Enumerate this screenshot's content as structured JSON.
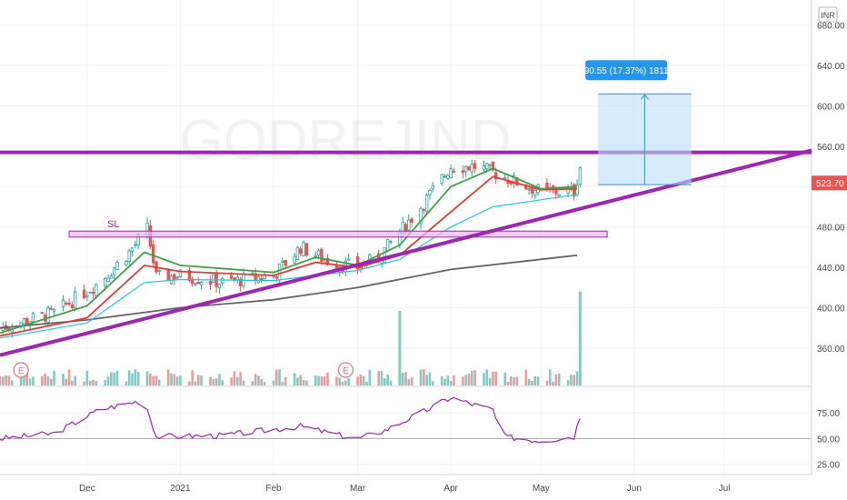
{
  "chart_data": {
    "type": "candlestick",
    "currency": "INR",
    "watermark": "GODREJIND",
    "price_axis": {
      "ticks": [
        360,
        400,
        440,
        480,
        520,
        560,
        600,
        640,
        680
      ],
      "labels": [
        "360.00",
        "400.00",
        "440.00",
        "480.00",
        "",
        "560.00",
        "600.00",
        "640.00",
        "680.00"
      ],
      "range": [
        323,
        705
      ]
    },
    "time_axis": {
      "labels": [
        "Dec",
        "2021",
        "Feb",
        "Mar",
        "Apr",
        "May",
        "Jun",
        "Jul"
      ],
      "range": [
        "2020-11-02",
        "2021-07-30"
      ]
    },
    "last_price": {
      "value": 523.7,
      "label": "523.70",
      "color": "#ef5350"
    },
    "measure": {
      "label": "90.55 (17.37%) 1811",
      "from_price": 522,
      "to_price": 612,
      "start_date": "2021-05-20",
      "end_date": "2021-06-20"
    },
    "annotations": {
      "stop_loss": "SL",
      "earnings": [
        "E",
        "E"
      ]
    },
    "resistance_line": {
      "price": 554,
      "color": "#9c27b0"
    },
    "trendline": {
      "start": [
        "2020-11-02",
        353
      ],
      "end": [
        "2021-07-30",
        556
      ],
      "color": "#9c27b0"
    },
    "support_zone": {
      "from_price": 470,
      "to_price": 476,
      "start": "2020-11-25",
      "end": "2021-05-23"
    },
    "moving_averages": [
      {
        "name": "green",
        "color": "#43a047"
      },
      {
        "name": "red",
        "color": "#e53935"
      },
      {
        "name": "teal",
        "color": "#26c6da"
      },
      {
        "name": "grey",
        "color": "#666666"
      }
    ],
    "control_points": {
      "close": [
        [
          "2020-11-02",
          380
        ],
        [
          "2020-11-20",
          395
        ],
        [
          "2020-12-05",
          425
        ],
        [
          "2020-12-15",
          455
        ],
        [
          "2020-12-21",
          478
        ],
        [
          "2020-12-24",
          430
        ],
        [
          "2021-01-01",
          432
        ],
        [
          "2021-01-15",
          425
        ],
        [
          "2021-02-01",
          432
        ],
        [
          "2021-02-10",
          460
        ],
        [
          "2021-02-20",
          445
        ],
        [
          "2021-03-01",
          440
        ],
        [
          "2021-03-08",
          450
        ],
        [
          "2021-03-15",
          475
        ],
        [
          "2021-03-22",
          500
        ],
        [
          "2021-04-01",
          540
        ],
        [
          "2021-04-10",
          540
        ],
        [
          "2021-04-20",
          528
        ],
        [
          "2021-05-01",
          515
        ],
        [
          "2021-05-12",
          515
        ],
        [
          "2021-05-15",
          552
        ]
      ],
      "ma_green": [
        [
          "2020-11-02",
          375
        ],
        [
          "2020-12-01",
          402
        ],
        [
          "2020-12-20",
          455
        ],
        [
          "2021-01-01",
          442
        ],
        [
          "2021-02-01",
          435
        ],
        [
          "2021-02-15",
          450
        ],
        [
          "2021-03-01",
          442
        ],
        [
          "2021-03-15",
          462
        ],
        [
          "2021-04-01",
          520
        ],
        [
          "2021-04-15",
          538
        ],
        [
          "2021-05-01",
          518
        ],
        [
          "2021-05-13",
          520
        ]
      ],
      "ma_red": [
        [
          "2020-11-02",
          372
        ],
        [
          "2020-12-01",
          390
        ],
        [
          "2020-12-20",
          442
        ],
        [
          "2021-01-01",
          436
        ],
        [
          "2021-02-01",
          432
        ],
        [
          "2021-02-15",
          445
        ],
        [
          "2021-03-01",
          440
        ],
        [
          "2021-03-15",
          452
        ],
        [
          "2021-04-01",
          495
        ],
        [
          "2021-04-15",
          530
        ],
        [
          "2021-05-01",
          517
        ],
        [
          "2021-05-13",
          518
        ]
      ],
      "ma_teal": [
        [
          "2020-11-02",
          370
        ],
        [
          "2020-12-01",
          385
        ],
        [
          "2020-12-20",
          425
        ],
        [
          "2021-01-01",
          428
        ],
        [
          "2021-02-01",
          427
        ],
        [
          "2021-03-01",
          437
        ],
        [
          "2021-03-15",
          448
        ],
        [
          "2021-04-01",
          480
        ],
        [
          "2021-04-15",
          500
        ],
        [
          "2021-05-01",
          507
        ],
        [
          "2021-05-13",
          512
        ]
      ],
      "ma_grey": [
        [
          "2020-11-02",
          380
        ],
        [
          "2020-12-01",
          388
        ],
        [
          "2021-01-01",
          400
        ],
        [
          "2021-02-01",
          408
        ],
        [
          "2021-03-01",
          420
        ],
        [
          "2021-04-01",
          438
        ],
        [
          "2021-05-13",
          452
        ]
      ],
      "rsi": [
        [
          "2020-11-02",
          50
        ],
        [
          "2020-11-20",
          55
        ],
        [
          "2020-12-05",
          78
        ],
        [
          "2020-12-20",
          88
        ],
        [
          "2020-12-24",
          52
        ],
        [
          "2021-01-15",
          53
        ],
        [
          "2021-02-10",
          62
        ],
        [
          "2021-02-25",
          52
        ],
        [
          "2021-03-01",
          50
        ],
        [
          "2021-03-10",
          58
        ],
        [
          "2021-03-22",
          75
        ],
        [
          "2021-04-01",
          90
        ],
        [
          "2021-04-10",
          82
        ],
        [
          "2021-04-15",
          78
        ],
        [
          "2021-04-18",
          52
        ],
        [
          "2021-05-01",
          48
        ],
        [
          "2021-05-12",
          52
        ],
        [
          "2021-05-14",
          72
        ],
        [
          "2021-05-15",
          55
        ]
      ]
    },
    "volume_spikes": [
      [
        "2021-03-15",
        1.0
      ],
      [
        "2021-05-14",
        1.26
      ]
    ],
    "rsi_axis": {
      "ticks": [
        25,
        50,
        75
      ],
      "labels": [
        "25.00",
        "50.00",
        "75.00"
      ],
      "range": [
        15,
        100
      ],
      "midline": 50
    }
  }
}
